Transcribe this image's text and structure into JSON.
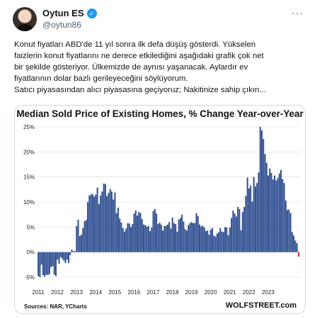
{
  "author": {
    "name": "Oytun ES",
    "handle": "@oytun86",
    "verified_badge": "✓",
    "avatar_icon": "person-avatar",
    "more_label": "···"
  },
  "tweet": {
    "lines": [
      "Konut fiyatları ABD'de 11 yıl sonra ilk defa düşüş gösterdi. Yükselen",
      "faizlerin konut fiyatlarını ne derece etkilediğini aşağıdaki grafik çok net",
      "bir şekilde gösteriyor. Ülkemizde de aynısı yaşanacak. Aylardır ev",
      "fiyatlarının dolar bazlı gerileyeceğini söylüyorum.",
      "Satıcı piyasasından alıcı piyasasına geçiyoruz; Nakitinize sahip çıkın..."
    ]
  },
  "media": {
    "source": "Sources: NAR, YCharts",
    "brand": "WOLFSTREET.com"
  },
  "chart_data": {
    "type": "bar",
    "title": "Median Sold Price of Existing Homes, % Change Year-over-Year",
    "xlabel": "",
    "ylabel": "",
    "ylim": [
      -5,
      25
    ],
    "yticks": [
      "-5%",
      "0%",
      "5%",
      "10%",
      "15%",
      "20%",
      "25%"
    ],
    "ytick_values": [
      -5,
      0,
      5,
      10,
      15,
      20,
      25
    ],
    "xticks": [
      "2011",
      "2012",
      "2013",
      "2014",
      "2015",
      "2016",
      "2017",
      "2018",
      "2019",
      "2020",
      "2021",
      "2022",
      "2023"
    ],
    "grid": true,
    "colors": {
      "positive": "#2b4b8f",
      "negative": "#e02424"
    },
    "series": [
      {
        "values": [
          -4.8,
          -5.0,
          -2.5,
          -4.6,
          -4.9,
          -4.5,
          -4.6,
          -4.4,
          -3.0,
          -2.8,
          -4.5,
          -4.8,
          -1.5,
          -2.3,
          -1.0,
          -1.3,
          -1.7,
          -2.2,
          -1.5,
          -2.2,
          -0.6,
          0.5,
          0.2,
          0.2,
          5.2,
          6.5,
          3.2,
          3.5,
          4.8,
          6.2,
          6.4,
          10.0,
          11.3,
          11.5,
          11.6,
          11.1,
          11.5,
          12.9,
          9.6,
          11.3,
          12.1,
          13.7,
          13.6,
          11.2,
          11.8,
          12.6,
          12.1,
          10.5,
          11.9,
          7.8,
          8.9,
          6.7,
          5.9,
          4.8,
          4.1,
          4.7,
          5.8,
          5.7,
          5.0,
          5.6,
          7.7,
          8.3,
          7.3,
          8.0,
          7.8,
          6.6,
          5.5,
          5.4,
          5.1,
          5.2,
          4.2,
          4.9,
          8.2,
          8.6,
          7.7,
          5.6,
          5.9,
          5.5,
          4.3,
          5.2,
          5.3,
          5.5,
          6.0,
          4.7,
          6.9,
          5.8,
          5.6,
          4.1,
          6.5,
          6.8,
          7.5,
          6.1,
          4.6,
          4.3,
          5.4,
          5.8,
          6.0,
          5.8,
          5.8,
          7.8,
          7.2,
          5.5,
          5.1,
          5.3,
          4.9,
          4.2,
          4.3,
          3.5,
          4.5,
          4.8,
          3.3,
          3.1,
          3.7,
          4.0,
          4.8,
          4.1,
          4.0,
          5.0,
          4.9,
          3.4,
          4.9,
          6.8,
          8.3,
          7.7,
          7.1,
          9.0,
          8.6,
          4.4,
          8.0,
          9.0,
          11.2,
          14.9,
          12.7,
          13.3,
          10.1,
          15.0,
          13.1,
          13.8,
          15.9,
          25.0,
          24.3,
          22.6,
          19.6,
          17.8,
          15.3,
          16.7,
          15.8,
          14.5,
          15.3,
          14.3,
          14.8,
          15.7,
          16.4,
          14.6,
          13.8,
          10.3,
          8.4,
          8.5,
          7.8,
          4.0,
          3.3,
          2.3,
          1.8,
          -0.9
        ]
      }
    ]
  }
}
